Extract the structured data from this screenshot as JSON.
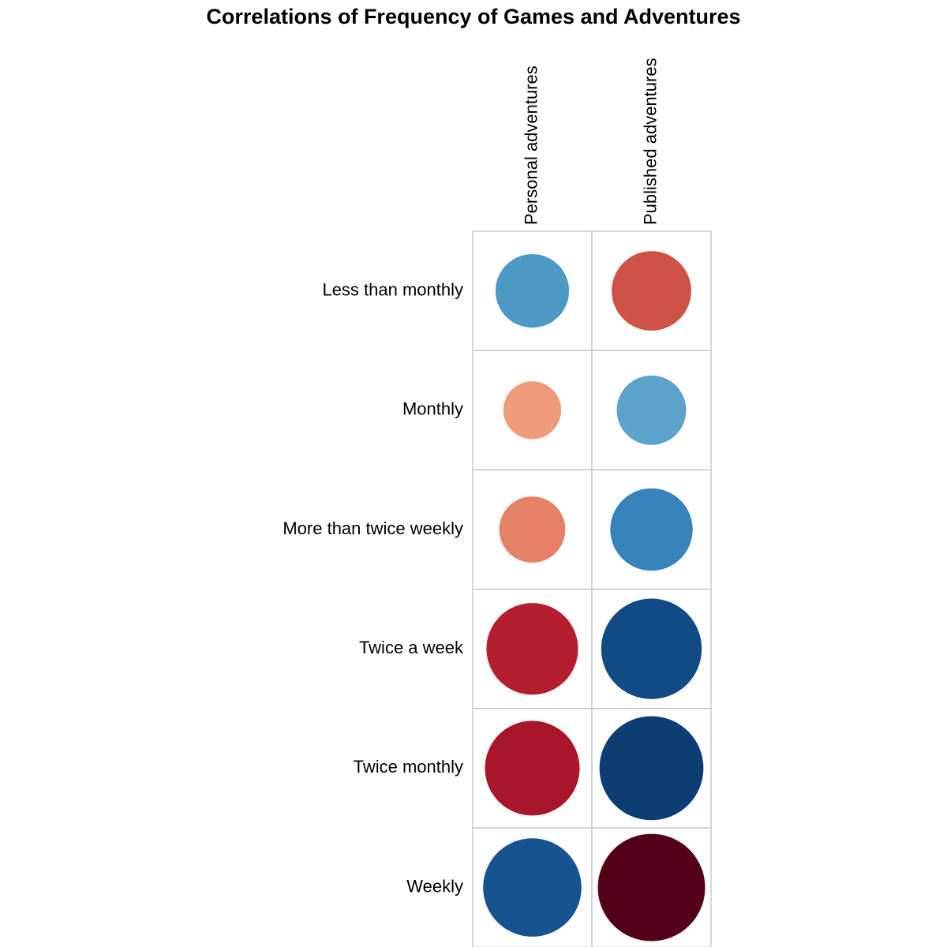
{
  "chart_data": {
    "type": "heatmap",
    "title": "Correlations of Frequency of Games and Adventures",
    "columns": [
      "Personal adventures",
      "Published adventures"
    ],
    "rows": [
      "Less than monthly",
      "Monthly",
      "More than twice weekly",
      "Twice a week",
      "Twice monthly",
      "Weekly"
    ],
    "values": [
      [
        -0.47,
        0.55
      ],
      [
        0.29,
        -0.42
      ],
      [
        0.38,
        -0.59
      ],
      [
        0.73,
        -0.88
      ],
      [
        0.78,
        -0.94
      ],
      [
        -0.84,
        1.0
      ]
    ],
    "color_scale": "RdBu diverging (positive = red, negative = blue)",
    "grid": true,
    "legend": "none"
  }
}
